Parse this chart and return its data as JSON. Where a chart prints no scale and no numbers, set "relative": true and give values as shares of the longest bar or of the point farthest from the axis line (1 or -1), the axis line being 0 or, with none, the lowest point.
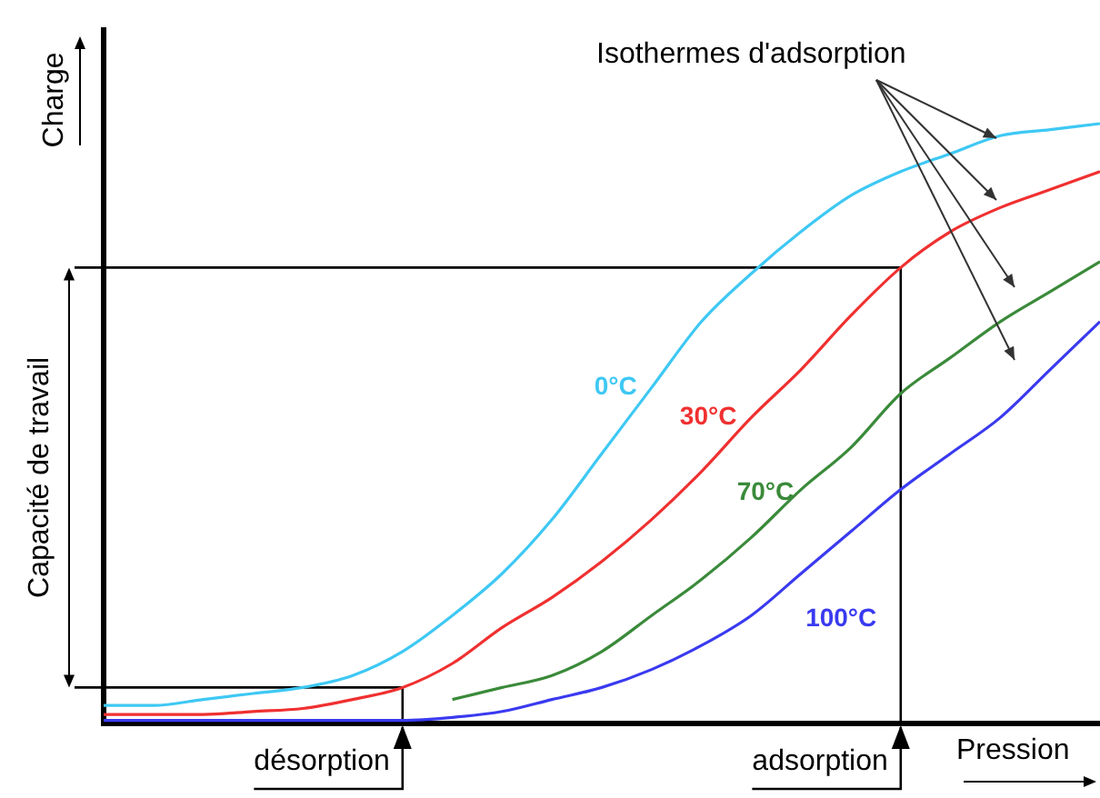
{
  "chart_data": {
    "type": "line",
    "relative": true,
    "xlabel": "Pression",
    "ylabel": "Charge",
    "categories": [
      null,
      null,
      null,
      null,
      null,
      null,
      null,
      null,
      null,
      null,
      null,
      null,
      null,
      null,
      null,
      null,
      null,
      null,
      null,
      null,
      null
    ],
    "series": [
      {
        "name": "0°C",
        "color": "#3ec8f4",
        "values": [
          0.03,
          0.03,
          0.04,
          0.05,
          0.06,
          0.08,
          0.12,
          0.18,
          0.25,
          0.34,
          0.45,
          0.56,
          0.67,
          0.75,
          0.82,
          0.88,
          0.92,
          0.95,
          0.98,
          0.99,
          1
        ]
      },
      {
        "name": "30°C",
        "color": "#f03030",
        "values": [
          0.015,
          0.015,
          0.015,
          0.02,
          0.025,
          0.04,
          0.06,
          0.1,
          0.16,
          0.21,
          0.27,
          0.34,
          0.42,
          0.51,
          0.59,
          0.68,
          0.76,
          0.82,
          0.86,
          0.89,
          0.92
        ]
      },
      {
        "name": "70°C",
        "color": "#3a8a3a",
        "values": [
          null,
          null,
          null,
          null,
          null,
          null,
          null,
          0.04,
          0.06,
          0.08,
          0.12,
          0.18,
          0.24,
          0.31,
          0.39,
          0.46,
          0.55,
          0.61,
          0.67,
          0.72,
          0.77
        ]
      },
      {
        "name": "100°C",
        "color": "#3a3af0",
        "values": [
          0.005,
          0.005,
          0.005,
          0.005,
          0.005,
          0.005,
          0.005,
          0.01,
          0.02,
          0.04,
          0.06,
          0.09,
          0.13,
          0.18,
          0.25,
          0.32,
          0.39,
          0.45,
          0.51,
          0.59,
          0.67
        ]
      }
    ],
    "ref_lines": [
      {
        "axis": "y",
        "value": 0.76
      },
      {
        "axis": "y",
        "value": 0.06
      }
    ],
    "annotations": [
      "Capacité de travail",
      "Isothermes d'adsorption",
      "adsorption",
      "désorption"
    ],
    "legend": false,
    "marker": "none",
    "line_style": "solid"
  }
}
